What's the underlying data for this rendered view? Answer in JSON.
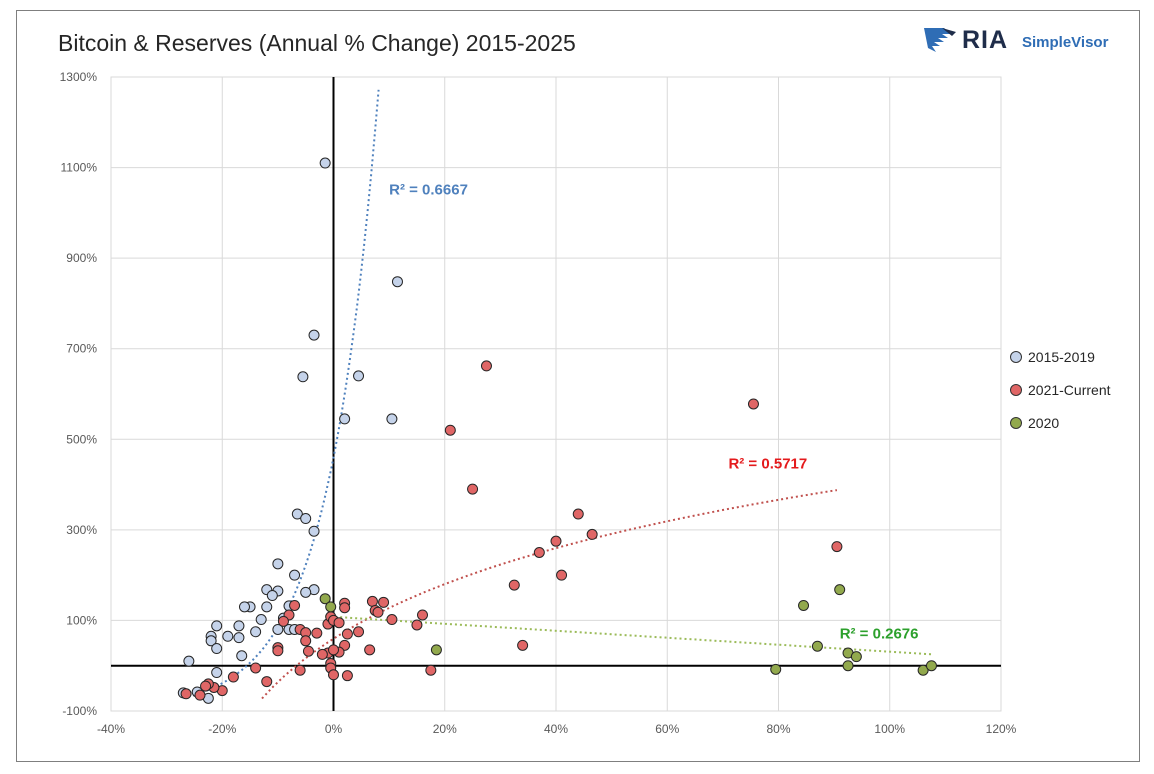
{
  "title": "Bitcoin & Reserves (Annual % Change) 2015-2025",
  "logo": {
    "brand": "RIA",
    "product": "SimpleVisor",
    "icon": "eagle-logo-icon"
  },
  "chart_data": {
    "type": "scatter",
    "title": "Bitcoin & Reserves (Annual % Change) 2015-2025",
    "xlabel": "",
    "ylabel": "",
    "xlim": [
      -40,
      120
    ],
    "ylim": [
      -100,
      1300
    ],
    "x_ticks": [
      "-40%",
      "-20%",
      "0%",
      "20%",
      "40%",
      "60%",
      "80%",
      "100%",
      "120%"
    ],
    "y_ticks": [
      "-100%",
      "100%",
      "300%",
      "500%",
      "700%",
      "900%",
      "1100%",
      "1300%"
    ],
    "grid": true,
    "legend_position": "right",
    "series": [
      {
        "name": "2015-2019",
        "color": "#c5d3ea",
        "trend_color": "#4f81bd",
        "trend_label": "R² = 0.6667",
        "points": [
          [
            -1.5,
            1110
          ],
          [
            11.5,
            848
          ],
          [
            -3.5,
            730
          ],
          [
            -5.5,
            638
          ],
          [
            4.5,
            640
          ],
          [
            2,
            545
          ],
          [
            10.5,
            545
          ],
          [
            -6.5,
            335
          ],
          [
            -5,
            325
          ],
          [
            -3.5,
            297
          ],
          [
            -7,
            200
          ],
          [
            -10,
            225
          ],
          [
            -3.5,
            168
          ],
          [
            -5,
            162
          ],
          [
            -8,
            132
          ],
          [
            -12,
            168
          ],
          [
            -10,
            165
          ],
          [
            -11,
            155
          ],
          [
            -12,
            130
          ],
          [
            -15,
            130
          ],
          [
            -16,
            130
          ],
          [
            -13,
            102
          ],
          [
            -9,
            105
          ],
          [
            -8,
            80
          ],
          [
            -7,
            80
          ],
          [
            -10,
            80
          ],
          [
            -14,
            75
          ],
          [
            -17,
            88
          ],
          [
            -17,
            62
          ],
          [
            -21,
            88
          ],
          [
            -19,
            65
          ],
          [
            -22,
            65
          ],
          [
            -22,
            55
          ],
          [
            -21,
            38
          ],
          [
            -16.5,
            22
          ],
          [
            -26,
            10
          ],
          [
            -21,
            -15
          ],
          [
            -27,
            -60
          ],
          [
            -22.5,
            -72
          ],
          [
            -24.5,
            -58
          ]
        ]
      },
      {
        "name": "2021-Current",
        "color": "#e06666",
        "trend_color": "#c0504d",
        "trend_label": "R² = 0.5717",
        "points": [
          [
            27.5,
            662
          ],
          [
            75.5,
            578
          ],
          [
            21,
            520
          ],
          [
            25,
            390
          ],
          [
            44,
            335
          ],
          [
            40,
            275
          ],
          [
            37,
            250
          ],
          [
            46.5,
            290
          ],
          [
            41,
            200
          ],
          [
            32.5,
            178
          ],
          [
            90.5,
            263
          ],
          [
            34,
            45
          ],
          [
            16,
            112
          ],
          [
            15,
            90
          ],
          [
            10.5,
            102
          ],
          [
            2,
            138
          ],
          [
            2,
            128
          ],
          [
            7,
            142
          ],
          [
            7.5,
            122
          ],
          [
            8,
            118
          ],
          [
            9,
            140
          ],
          [
            -7,
            133
          ],
          [
            -8,
            112
          ],
          [
            -9,
            98
          ],
          [
            -10,
            40
          ],
          [
            -10,
            33
          ],
          [
            -6,
            80
          ],
          [
            -5,
            73
          ],
          [
            -3,
            72
          ],
          [
            -1,
            92
          ],
          [
            -0.5,
            108
          ],
          [
            0,
            100
          ],
          [
            1,
            95
          ],
          [
            2.5,
            70
          ],
          [
            4.5,
            75
          ],
          [
            2,
            45
          ],
          [
            6.5,
            35
          ],
          [
            1,
            30
          ],
          [
            -1,
            28
          ],
          [
            0,
            35
          ],
          [
            -2,
            25
          ],
          [
            -4.5,
            32
          ],
          [
            -5,
            55
          ],
          [
            -0.5,
            5
          ],
          [
            -0.5,
            -5
          ],
          [
            0,
            -20
          ],
          [
            2.5,
            -22
          ],
          [
            -6,
            -10
          ],
          [
            -14,
            -5
          ],
          [
            -12,
            -35
          ],
          [
            -18,
            -25
          ],
          [
            -20,
            -55
          ],
          [
            -21.5,
            -48
          ],
          [
            -22.5,
            -40
          ],
          [
            -24,
            -65
          ],
          [
            -26.5,
            -62
          ],
          [
            -23,
            -45
          ],
          [
            17.5,
            -10
          ]
        ]
      },
      {
        "name": "2020",
        "color": "#92a94d",
        "trend_color": "#9bbb59",
        "trend_label": "R² = 0.2676",
        "points": [
          [
            -1.5,
            148
          ],
          [
            -0.5,
            130
          ],
          [
            18.5,
            35
          ],
          [
            84.5,
            133
          ],
          [
            91,
            168
          ],
          [
            87,
            43
          ],
          [
            92.5,
            28
          ],
          [
            94,
            20
          ],
          [
            79.5,
            -8
          ],
          [
            92.5,
            0
          ],
          [
            106,
            -10
          ],
          [
            107.5,
            0
          ]
        ]
      }
    ]
  }
}
